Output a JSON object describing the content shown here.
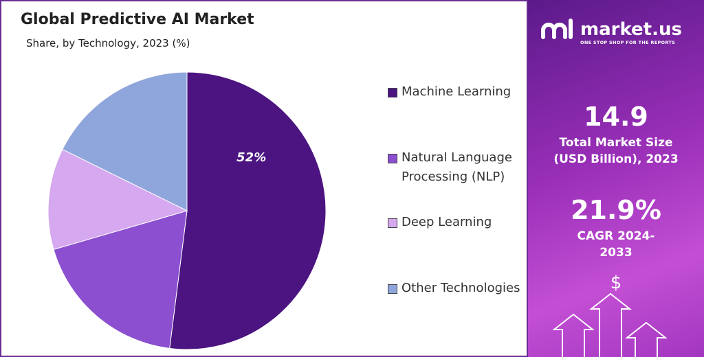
{
  "chart_data": {
    "type": "pie",
    "title": "Global Predictive AI Market",
    "subtitle": "Share, by Technology, 2023 (%)",
    "categories": [
      "Machine Learning",
      "Natural Language Processing (NLP)",
      "Deep Learning",
      "Other Technologies"
    ],
    "values": [
      52,
      18.5,
      11.8,
      17.7
    ],
    "value_labels": [
      "52%",
      null,
      null,
      null
    ],
    "colors": [
      "#4b1480",
      "#8b4fd0",
      "#d5a8f0",
      "#8fa6dc"
    ],
    "legend": "right"
  },
  "sidebar": {
    "brand": "market.us",
    "tagline": "ONE STOP SHOP FOR THE REPORTS",
    "stats": [
      {
        "value": "14.9",
        "label": "Total Market Size (USD Billion), 2023"
      },
      {
        "value": "21.9%",
        "label": "CAGR 2024-2033"
      }
    ]
  }
}
